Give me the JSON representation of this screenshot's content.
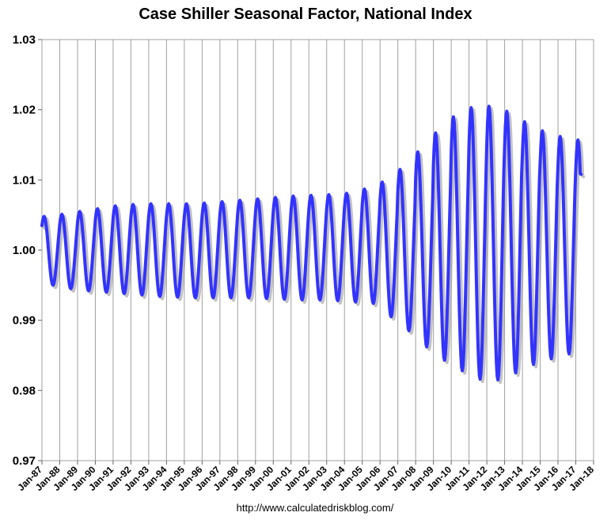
{
  "chart_data": {
    "type": "line",
    "title": "Case Shiller Seasonal Factor, National Index",
    "source": "http://www.calculatedriskblog.com/",
    "xlabel": "",
    "ylabel": "",
    "ylim": [
      0.97,
      1.03
    ],
    "yticks": [
      "0.97",
      "0.98",
      "0.99",
      "1.00",
      "1.01",
      "1.02",
      "1.03"
    ],
    "xticks": [
      "Jan-87",
      "Jan-88",
      "Jan-89",
      "Jan-90",
      "Jan-91",
      "Jan-92",
      "Jan-93",
      "Jan-94",
      "Jan-95",
      "Jan-96",
      "Jan-97",
      "Jan-98",
      "Jan-99",
      "Jan-00",
      "Jan-01",
      "Jan-02",
      "Jan-03",
      "Jan-04",
      "Jan-05",
      "Jan-06",
      "Jan-07",
      "Jan-08",
      "Jan-09",
      "Jan-10",
      "Jan-11",
      "Jan-12",
      "Jan-13",
      "Jan-14",
      "Jan-15",
      "Jan-16",
      "Jan-17",
      "Jan-18"
    ],
    "xlim": [
      1987,
      2018
    ],
    "grid": "vertical",
    "colors": {
      "series": "#3333ff",
      "shadow": "#999999",
      "grid": "#a0a0a0"
    },
    "series": [
      {
        "name": "",
        "cycles": [
          {
            "year": 1987,
            "peak": 1.0048,
            "trough": 0.995
          },
          {
            "year": 1988,
            "peak": 1.0051,
            "trough": 0.9945
          },
          {
            "year": 1989,
            "peak": 1.0055,
            "trough": 0.9942
          },
          {
            "year": 1990,
            "peak": 1.0059,
            "trough": 0.994
          },
          {
            "year": 1991,
            "peak": 1.0063,
            "trough": 0.9938
          },
          {
            "year": 1992,
            "peak": 1.0065,
            "trough": 0.9936
          },
          {
            "year": 1993,
            "peak": 1.0066,
            "trough": 0.9934
          },
          {
            "year": 1994,
            "peak": 1.0066,
            "trough": 0.9933
          },
          {
            "year": 1995,
            "peak": 1.0066,
            "trough": 0.9932
          },
          {
            "year": 1996,
            "peak": 1.0067,
            "trough": 0.9932
          },
          {
            "year": 1997,
            "peak": 1.0069,
            "trough": 0.9932
          },
          {
            "year": 1998,
            "peak": 1.0071,
            "trough": 0.9932
          },
          {
            "year": 1999,
            "peak": 1.0073,
            "trough": 0.9931
          },
          {
            "year": 2000,
            "peak": 1.0075,
            "trough": 0.993
          },
          {
            "year": 2001,
            "peak": 1.0077,
            "trough": 0.9929
          },
          {
            "year": 2002,
            "peak": 1.0078,
            "trough": 0.9929
          },
          {
            "year": 2003,
            "peak": 1.0079,
            "trough": 0.9928
          },
          {
            "year": 2004,
            "peak": 1.0081,
            "trough": 0.9926
          },
          {
            "year": 2005,
            "peak": 1.0087,
            "trough": 0.9924
          },
          {
            "year": 2006,
            "peak": 1.0097,
            "trough": 0.9905
          },
          {
            "year": 2007,
            "peak": 1.0115,
            "trough": 0.9885
          },
          {
            "year": 2008,
            "peak": 1.014,
            "trough": 0.9862
          },
          {
            "year": 2009,
            "peak": 1.0167,
            "trough": 0.9843
          },
          {
            "year": 2010,
            "peak": 1.019,
            "trough": 0.9828
          },
          {
            "year": 2011,
            "peak": 1.0203,
            "trough": 0.9816
          },
          {
            "year": 2012,
            "peak": 1.0205,
            "trough": 0.9815
          },
          {
            "year": 2013,
            "peak": 1.0198,
            "trough": 0.9825
          },
          {
            "year": 2014,
            "peak": 1.0183,
            "trough": 0.9837
          },
          {
            "year": 2015,
            "peak": 1.017,
            "trough": 0.9845
          },
          {
            "year": 2016,
            "peak": 1.0162,
            "trough": 0.9852
          },
          {
            "year": 2017,
            "peak": 1.0157,
            "trough": null
          }
        ],
        "start": {
          "x": 1987.0,
          "y": 1.0035
        },
        "end": {
          "x": 2017.3,
          "y": 1.0108
        }
      }
    ]
  }
}
